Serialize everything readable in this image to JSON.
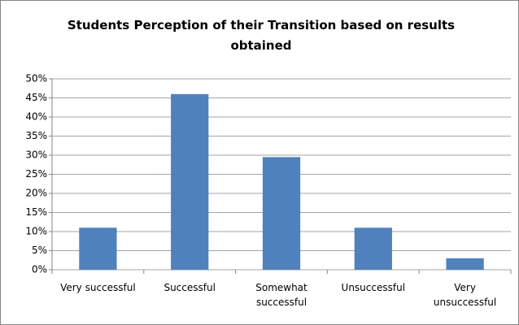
{
  "chart_data": {
    "type": "bar",
    "title": "Students Perception of their Transition based on results obtained",
    "categories": [
      "Very successful",
      "Successful",
      "Somewhat successful",
      "Unsuccessful",
      "Very unsuccessful"
    ],
    "values": [
      11,
      46,
      29.5,
      11,
      3
    ],
    "color": "#4f81bd",
    "ylim": [
      0,
      50
    ],
    "yticks": [
      {
        "value": 0,
        "label": "0%"
      },
      {
        "value": 5,
        "label": "5%"
      },
      {
        "value": 10,
        "label": "10%"
      },
      {
        "value": 15,
        "label": "15%"
      },
      {
        "value": 20,
        "label": "20%"
      },
      {
        "value": 25,
        "label": "25%"
      },
      {
        "value": 30,
        "label": "30%"
      },
      {
        "value": 35,
        "label": "35%"
      },
      {
        "value": 40,
        "label": "40%"
      },
      {
        "value": 45,
        "label": "45%"
      },
      {
        "value": 50,
        "label": "50%"
      }
    ],
    "grid": true
  }
}
